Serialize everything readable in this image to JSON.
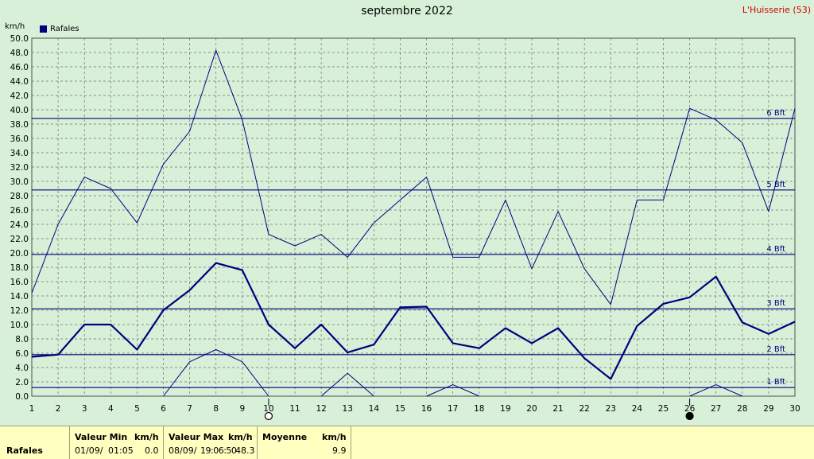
{
  "title": "septembre 2022",
  "site": "L'Huisserie (53)",
  "unit_label": "km/h",
  "legend": "Rafales",
  "colors": {
    "background": "#d8f0d8",
    "series": "#000080",
    "grid": "#707070",
    "site": "#d00000",
    "panel": "#ffffc0"
  },
  "chart_data": {
    "type": "line",
    "title": "septembre 2022",
    "ylabel": "km/h",
    "x": [
      1,
      2,
      3,
      4,
      5,
      6,
      7,
      8,
      9,
      10,
      11,
      12,
      13,
      14,
      15,
      16,
      17,
      18,
      19,
      20,
      21,
      22,
      23,
      24,
      25,
      26,
      27,
      28,
      29,
      30
    ],
    "ylim": [
      0,
      50
    ],
    "ytick_step": 2,
    "grid": true,
    "legend_position": "top-left",
    "series": [
      {
        "name": "Rafales",
        "role": "mean",
        "values": [
          5.5,
          5.8,
          10.0,
          10.0,
          6.5,
          12.0,
          14.8,
          18.6,
          17.6,
          10.0,
          6.7,
          10.0,
          6.1,
          7.2,
          12.4,
          12.5,
          7.4,
          6.7,
          9.5,
          7.4,
          9.5,
          5.3,
          2.4,
          9.8,
          12.9,
          13.8,
          16.7,
          10.3,
          8.7,
          10.4
        ]
      },
      {
        "role": "max",
        "values": [
          14.4,
          24.0,
          30.6,
          29.0,
          24.2,
          32.4,
          37.0,
          48.3,
          38.6,
          22.6,
          21.0,
          22.6,
          19.4,
          24.2,
          27.4,
          30.6,
          19.4,
          19.4,
          27.4,
          17.8,
          25.8,
          17.8,
          12.8,
          27.4,
          27.4,
          40.2,
          38.6,
          35.4,
          25.8,
          40.2
        ]
      },
      {
        "role": "min",
        "values": [
          null,
          null,
          null,
          null,
          null,
          0.0,
          4.8,
          6.5,
          4.8,
          0.0,
          null,
          0.0,
          3.2,
          0.0,
          null,
          0.0,
          1.6,
          0.0,
          null,
          null,
          null,
          null,
          null,
          null,
          null,
          0.0,
          1.6,
          0.0,
          null,
          null
        ]
      }
    ],
    "beaufort_lines": [
      {
        "label": "1 Bft",
        "value": 1.2
      },
      {
        "label": "2 Bft",
        "value": 5.8
      },
      {
        "label": "3 Bft",
        "value": 12.2
      },
      {
        "label": "4 Bft",
        "value": 19.8
      },
      {
        "label": "5 Bft",
        "value": 28.8
      },
      {
        "label": "6 Bft",
        "value": 38.8
      }
    ],
    "moon_phases": [
      {
        "day": 10,
        "phase": "full"
      },
      {
        "day": 26,
        "phase": "new"
      }
    ]
  },
  "stats": {
    "row_label": "Rafales",
    "min_header": "Valeur Min",
    "min_unit": "km/h",
    "min_date": "01/09/",
    "min_time": "01:05",
    "min_value": "0.0",
    "max_header": "Valeur Max",
    "max_unit": "km/h",
    "max_date": "08/09/",
    "max_time": "19:06:50",
    "max_value": "48.3",
    "mean_header": "Moyenne",
    "mean_unit": "km/h",
    "mean_value": "9.9"
  }
}
